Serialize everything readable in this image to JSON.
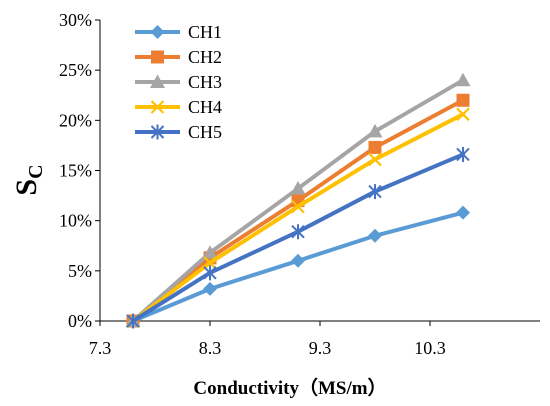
{
  "chart_data": {
    "type": "line",
    "xlabel": "Conductivity（MS/m）",
    "ylabel": "S",
    "ylabel_subscript": "C",
    "x_ticks": [
      "7.3",
      "8.3",
      "9.3",
      "10.3"
    ],
    "x_tick_values": [
      7.3,
      8.3,
      9.3,
      10.3
    ],
    "y_ticks": [
      "0%",
      "5%",
      "10%",
      "15%",
      "20%",
      "25%",
      "30%"
    ],
    "y_tick_values": [
      0,
      5,
      10,
      15,
      20,
      25,
      30
    ],
    "xlim": [
      7.3,
      11.3
    ],
    "ylim": [
      0,
      30
    ],
    "y_unit": "%",
    "grid": false,
    "legend_position": "top-left",
    "x": [
      7.6,
      8.3,
      9.1,
      9.8,
      10.6
    ],
    "series": [
      {
        "name": "CH1",
        "color": "#5B9BD5",
        "marker": "diamond",
        "values": [
          0,
          3.2,
          6.0,
          8.5,
          10.8
        ]
      },
      {
        "name": "CH2",
        "color": "#ED7D31",
        "marker": "square",
        "values": [
          0,
          6.3,
          12.0,
          17.3,
          22.0
        ]
      },
      {
        "name": "CH3",
        "color": "#A5A5A5",
        "marker": "triangle",
        "values": [
          0,
          6.8,
          13.2,
          18.9,
          24.0
        ]
      },
      {
        "name": "CH4",
        "color": "#FFC000",
        "marker": "x",
        "values": [
          0,
          5.8,
          11.4,
          16.1,
          20.6
        ]
      },
      {
        "name": "CH5",
        "color": "#4472C4",
        "marker": "star",
        "values": [
          0,
          4.8,
          8.9,
          12.9,
          16.6
        ]
      }
    ]
  }
}
